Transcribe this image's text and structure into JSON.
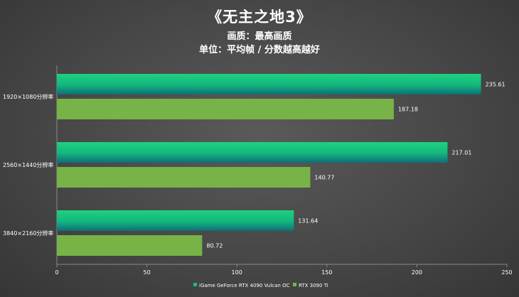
{
  "chart_data": {
    "type": "bar",
    "orientation": "horizontal",
    "title": "《无主之地3》",
    "subtitle": [
      "画质：最高画质",
      "单位：平均帧 / 分数越高越好"
    ],
    "categories": [
      "1920×1080分辨率",
      "2560×1440分辨率",
      "3840×2160分辨率"
    ],
    "series": [
      {
        "name": "iGame GeForce RTX 4090 Vulcan OC",
        "values": [
          235.61,
          217.01,
          131.64
        ],
        "color": "#16c07a"
      },
      {
        "name": "RTX 3090 Ti",
        "values": [
          187.18,
          140.77,
          80.72
        ],
        "color": "#77b347"
      }
    ],
    "xlim": [
      0,
      250
    ],
    "xticks": [
      0,
      50,
      100,
      150,
      200,
      250
    ],
    "legend": "bottom-center",
    "grid": false
  }
}
